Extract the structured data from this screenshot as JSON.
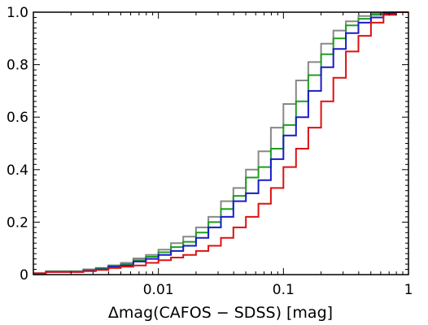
{
  "chart_data": {
    "type": "line",
    "xlabel": "Δmag(CAFOS − SDSS) [mag]",
    "xscale": "log",
    "xlim": [
      0.001,
      1
    ],
    "ylim": [
      0,
      1
    ],
    "x_ticks": [
      {
        "value": 0.01,
        "label": "0.01"
      },
      {
        "value": 0.1,
        "label": "0.1"
      },
      {
        "value": 1,
        "label": "1"
      }
    ],
    "y_ticks": [
      {
        "value": 0,
        "label": "0"
      },
      {
        "value": 0.2,
        "label": "0.2"
      },
      {
        "value": 0.4,
        "label": "0.4"
      },
      {
        "value": 0.6,
        "label": "0.6"
      },
      {
        "value": 0.8,
        "label": "0.8"
      },
      {
        "value": 1.0,
        "label": "1.0"
      }
    ],
    "grid": false,
    "bin_edges": [
      0.001,
      0.00126,
      0.00158,
      0.002,
      0.00251,
      0.00316,
      0.00398,
      0.00501,
      0.00631,
      0.00794,
      0.01,
      0.0126,
      0.0158,
      0.02,
      0.0251,
      0.0316,
      0.0398,
      0.0501,
      0.0631,
      0.0794,
      0.1,
      0.126,
      0.158,
      0.2,
      0.251,
      0.316,
      0.398,
      0.501,
      0.631,
      0.794,
      1.0
    ],
    "series": [
      {
        "color": "#888888",
        "step_values": [
          0.005,
          0.013,
          0.013,
          0.013,
          0.02,
          0.025,
          0.035,
          0.045,
          0.062,
          0.075,
          0.095,
          0.12,
          0.145,
          0.18,
          0.22,
          0.28,
          0.33,
          0.4,
          0.47,
          0.56,
          0.65,
          0.74,
          0.81,
          0.88,
          0.93,
          0.965,
          0.985,
          0.995,
          1.0,
          1.0
        ]
      },
      {
        "color": "#1f9e1f",
        "step_values": [
          0.005,
          0.012,
          0.012,
          0.012,
          0.018,
          0.025,
          0.035,
          0.04,
          0.055,
          0.068,
          0.085,
          0.105,
          0.125,
          0.16,
          0.2,
          0.25,
          0.3,
          0.37,
          0.41,
          0.48,
          0.57,
          0.66,
          0.76,
          0.84,
          0.9,
          0.95,
          0.975,
          0.99,
          0.997,
          1.0
        ]
      },
      {
        "color": "#1a1acc",
        "step_values": [
          0.005,
          0.01,
          0.01,
          0.01,
          0.015,
          0.02,
          0.03,
          0.035,
          0.05,
          0.06,
          0.075,
          0.09,
          0.11,
          0.14,
          0.18,
          0.22,
          0.28,
          0.31,
          0.36,
          0.44,
          0.53,
          0.6,
          0.7,
          0.79,
          0.86,
          0.92,
          0.96,
          0.98,
          0.995,
          1.0
        ]
      },
      {
        "color": "#dd1111",
        "step_values": [
          0.005,
          0.01,
          0.01,
          0.01,
          0.013,
          0.018,
          0.025,
          0.03,
          0.035,
          0.045,
          0.055,
          0.065,
          0.075,
          0.09,
          0.11,
          0.14,
          0.18,
          0.22,
          0.27,
          0.33,
          0.41,
          0.48,
          0.56,
          0.66,
          0.75,
          0.85,
          0.91,
          0.96,
          0.99,
          1.0
        ]
      }
    ]
  }
}
